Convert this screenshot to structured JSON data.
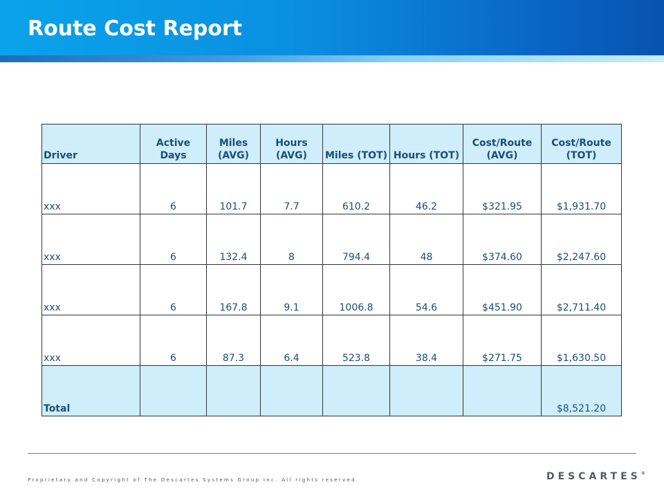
{
  "header": {
    "title": "Route Cost Report",
    "colors": {
      "primary": "#0a8fe0",
      "dark": "#0753ad",
      "accent_light": "#cfeefb"
    }
  },
  "table": {
    "columns": [
      "Driver",
      "Active Days",
      "Miles (AVG)",
      "Hours (AVG)",
      "Miles (TOT)",
      "Hours (TOT)",
      "Cost/Route (AVG)",
      "Cost/Route (TOT)"
    ],
    "rows": [
      [
        "xxx",
        "6",
        "101.7",
        "7.7",
        "610.2",
        "46.2",
        "$321.95",
        "$1,931.70"
      ],
      [
        "xxx",
        "6",
        "132.4",
        "8",
        "794.4",
        "48",
        "$374.60",
        "$2,247.60"
      ],
      [
        "xxx",
        "6",
        "167.8",
        "9.1",
        "1006.8",
        "54.6",
        "$451.90",
        "$2,711.40"
      ],
      [
        "xxx",
        "6",
        "87.3",
        "6.4",
        "523.8",
        "38.4",
        "$271.75",
        "$1,630.50"
      ]
    ],
    "total": {
      "label": "Total",
      "cost_route_tot": "$8,521.20"
    }
  },
  "footer": {
    "copyright": "Proprietary and Copyright of The Descartes Systems Group Inc. All rights reserved.",
    "logo_text": "DESCARTES",
    "logo_mark": "®"
  }
}
